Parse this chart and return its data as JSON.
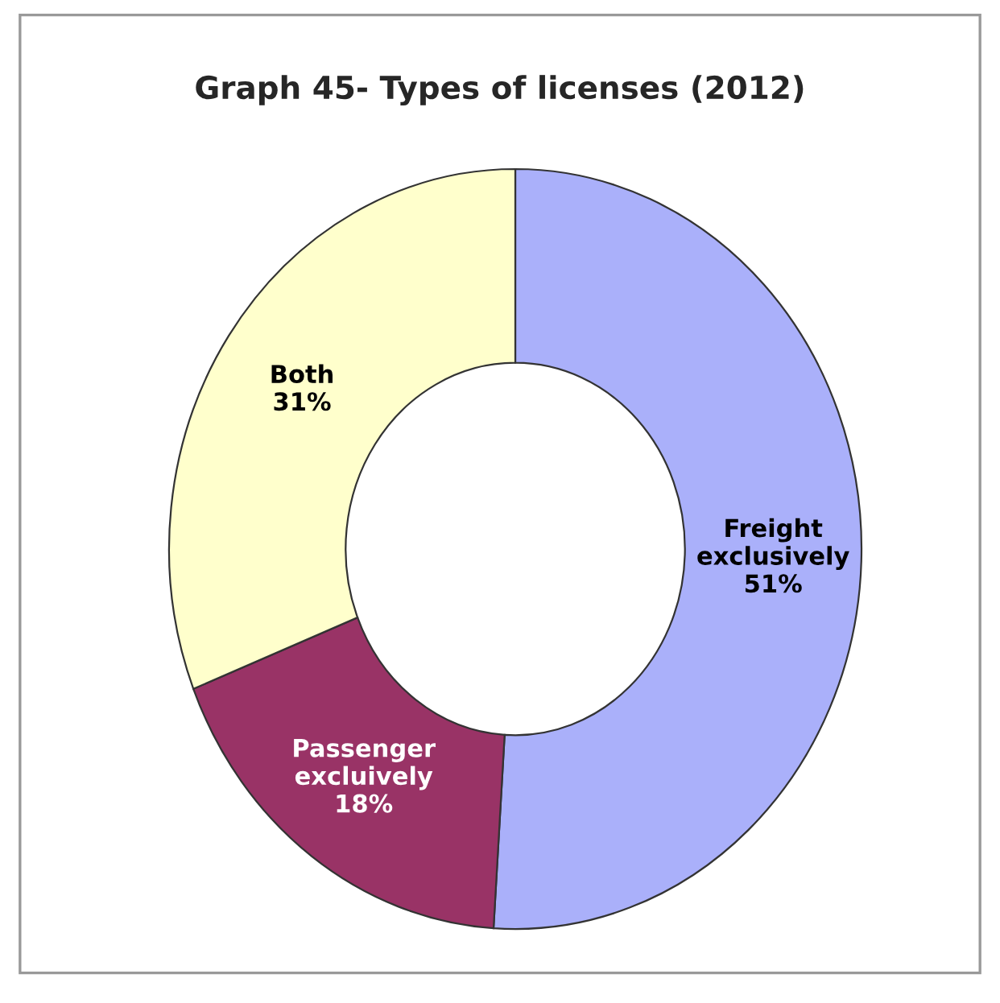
{
  "chart_data": {
    "type": "donut",
    "title": "Graph 45- Types of licenses (2012)",
    "categories": [
      "Freight exclusively",
      "Passenger excluively",
      "Both"
    ],
    "values": [
      51,
      18,
      31
    ],
    "value_labels": [
      "51%",
      "18%",
      "31%"
    ],
    "colors": [
      "#aab0fa",
      "#993366",
      "#ffffcc"
    ]
  }
}
